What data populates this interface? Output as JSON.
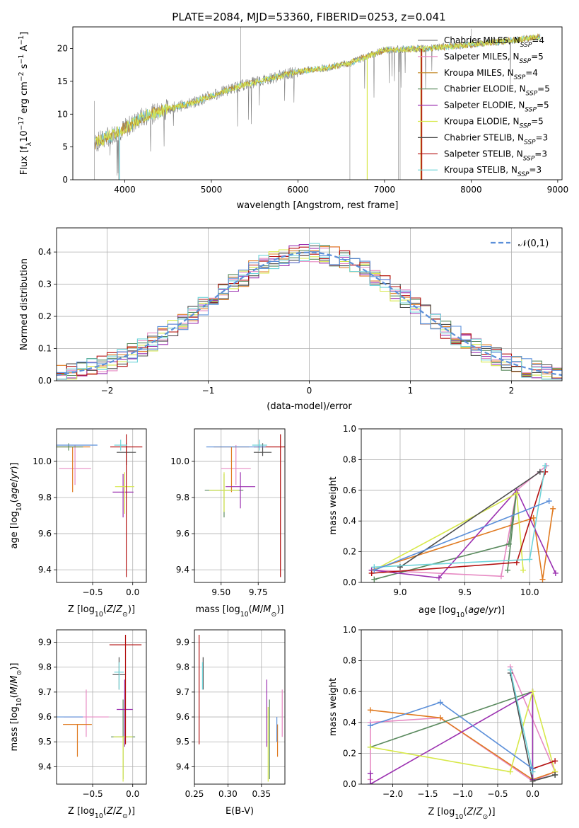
{
  "title": "PLATE=2084, MJD=53360, FIBERID=0253, z=0.041",
  "colors": [
    "#808080",
    "#e78ac3",
    "#c0841e",
    "#5a8a5e",
    "#9b30b0",
    "#d7e84a",
    "#4d4d4d",
    "#b31010",
    "#6fd4d9"
  ],
  "legend_colors": [
    "#808080",
    "#e78ac3",
    "#c0841e",
    "#5a8a5e",
    "#9b30b0",
    "#d7e84a",
    "#4d4d4d",
    "#b31010",
    "#6fd4d9"
  ],
  "model_colors": [
    "#e78ac3",
    "#e07a20",
    "#5a8a5e",
    "#9b30b0",
    "#d7e84a",
    "#4d4d4d",
    "#b31010",
    "#6fd4d9",
    "#5b8fd9"
  ],
  "chart_data": [
    {
      "type": "line",
      "panel": "spectrum",
      "title": "PLATE=2084, MJD=53360, FIBERID=0253, z=0.041",
      "xlabel": "wavelength [Angstrom, rest frame]",
      "ylabel": "Flux [f_λ10^-17 erg cm^-2 s^-1 A^-1]",
      "xlim": [
        3400,
        9050
      ],
      "ylim": [
        0,
        23.3
      ],
      "xticks": [
        4000,
        5000,
        6000,
        7000,
        8000,
        9000
      ],
      "yticks": [
        0,
        5,
        10,
        15,
        20
      ],
      "legend": [
        {
          "label": "Chabrier MILES, N",
          "sub": "SSP",
          "tail": "=4"
        },
        {
          "label": "Salpeter MILES, N",
          "sub": "SSP",
          "tail": "=5"
        },
        {
          "label": "Kroupa MILES, N",
          "sub": "SSP",
          "tail": "=4"
        },
        {
          "label": "Chabrier ELODIE, N",
          "sub": "SSP",
          "tail": "=5"
        },
        {
          "label": "Salpeter ELODIE, N",
          "sub": "SSP",
          "tail": "=5"
        },
        {
          "label": "Kroupa ELODIE, N",
          "sub": "SSP",
          "tail": "=5"
        },
        {
          "label": "Chabrier STELIB, N",
          "sub": "SSP",
          "tail": "=3"
        },
        {
          "label": "Salpeter STELIB, N",
          "sub": "SSP",
          "tail": "=3"
        },
        {
          "label": "Kroupa STELIB, N",
          "sub": "SSP",
          "tail": "=3"
        }
      ],
      "legend_placement": "upper-right",
      "continuum": [
        [
          3650,
          5.5
        ],
        [
          3800,
          6.5
        ],
        [
          4000,
          7.8
        ],
        [
          4200,
          9.5
        ],
        [
          4500,
          10.8
        ],
        [
          4800,
          11.8
        ],
        [
          5000,
          12.8
        ],
        [
          5300,
          14.2
        ],
        [
          5600,
          15.2
        ],
        [
          6000,
          16.5
        ],
        [
          6300,
          17.0
        ],
        [
          6600,
          17.8
        ],
        [
          7000,
          19.8
        ],
        [
          7500,
          20.0
        ],
        [
          8000,
          20.6
        ],
        [
          8500,
          21.3
        ],
        [
          8800,
          21.8
        ]
      ],
      "grid": false
    },
    {
      "type": "histogram",
      "panel": "residuals",
      "xlabel": "(data-model)/error",
      "ylabel": "Normed distribution",
      "xlim": [
        -2.5,
        2.5
      ],
      "ylim": [
        0,
        0.475
      ],
      "xticks": [
        -2,
        -1,
        0,
        1,
        2
      ],
      "yticks": [
        0.0,
        0.1,
        0.2,
        0.3,
        0.4
      ],
      "bin_width": 0.1,
      "legend": [
        "𝒩(0,1)"
      ],
      "legend_placement": "upper-right",
      "grid": true
    },
    {
      "type": "scatter",
      "panel": "age-vs-Z",
      "xlabel": "Z [log10(Z/Z⊙)]",
      "ylabel": "age  [log10(age/yr)]",
      "xlim": [
        -0.95,
        0.17
      ],
      "ylim": [
        9.33,
        10.18
      ],
      "xticks": [
        -0.5,
        0.0
      ],
      "yticks": [
        9.4,
        9.6,
        9.8,
        10.0
      ],
      "grid": true,
      "points": [
        {
          "x": -0.72,
          "y": 9.96,
          "xerr": 0.2,
          "yerr_lo": 0.09,
          "yerr_hi": 0.13
        },
        {
          "x": -0.75,
          "y": 10.08,
          "xerr": 0.22,
          "yerr_lo": 0.25,
          "yerr_hi": 0.0
        },
        {
          "x": -0.8,
          "y": 10.08,
          "xerr": 0.18,
          "yerr_lo": 0.02,
          "yerr_hi": 0.02
        },
        {
          "x": -0.12,
          "y": 9.83,
          "xerr": 0.13,
          "yerr_lo": 0.14,
          "yerr_hi": 0.1
        },
        {
          "x": -0.1,
          "y": 9.86,
          "xerr": 0.12,
          "yerr_lo": 0.15,
          "yerr_hi": 0.08
        },
        {
          "x": -0.08,
          "y": 10.05,
          "xerr": 0.12,
          "yerr_lo": 0.07,
          "yerr_hi": 0.05
        },
        {
          "x": -0.08,
          "y": 10.08,
          "xerr": 0.2,
          "yerr_lo": 0.72,
          "yerr_hi": 0.07
        },
        {
          "x": -0.15,
          "y": 10.09,
          "xerr": 0.08,
          "yerr_lo": 0.03,
          "yerr_hi": 0.03
        },
        {
          "x": -0.72,
          "y": 10.09,
          "xerr": 0.28,
          "yerr_lo": 0.0,
          "yerr_hi": 0.0
        }
      ]
    },
    {
      "type": "scatter",
      "panel": "age-vs-mass",
      "xlabel": "mass [log10(M/M⊙)]",
      "ylabel": "",
      "xlim": [
        9.32,
        9.93
      ],
      "ylim": [
        9.33,
        10.18
      ],
      "xticks": [
        9.5,
        9.75
      ],
      "yticks": [
        9.4,
        9.6,
        9.8,
        10.0
      ],
      "grid": true,
      "points": [
        {
          "x": 9.6,
          "y": 9.96,
          "xerr": 0.1,
          "yerr_lo": 0.09,
          "yerr_hi": 0.13
        },
        {
          "x": 9.57,
          "y": 10.08,
          "xerr": 0.12,
          "yerr_lo": 0.25,
          "yerr_hi": 0.0
        },
        {
          "x": 9.52,
          "y": 9.84,
          "xerr": 0.13,
          "yerr_lo": 0.15,
          "yerr_hi": 0.09
        },
        {
          "x": 9.63,
          "y": 9.86,
          "xerr": 0.1,
          "yerr_lo": 0.12,
          "yerr_hi": 0.08
        },
        {
          "x": 9.52,
          "y": 9.84,
          "xerr": 0.1,
          "yerr_lo": 0.12,
          "yerr_hi": 0.1
        },
        {
          "x": 9.78,
          "y": 10.05,
          "xerr": 0.06,
          "yerr_lo": 0.02,
          "yerr_hi": 0.05
        },
        {
          "x": 9.9,
          "y": 10.08,
          "xerr": 0.18,
          "yerr_lo": 0.72,
          "yerr_hi": 0.07
        },
        {
          "x": 9.76,
          "y": 10.09,
          "xerr": 0.05,
          "yerr_lo": 0.03,
          "yerr_hi": 0.03
        },
        {
          "x": 9.6,
          "y": 10.08,
          "xerr": 0.2,
          "yerr_lo": 0.0,
          "yerr_hi": 0.0
        }
      ]
    },
    {
      "type": "line",
      "panel": "massweight-vs-age",
      "xlabel": "age  [log10(age/yr)]",
      "ylabel": "mass weight",
      "xlim": [
        8.7,
        10.25
      ],
      "ylim": [
        0,
        1.0
      ],
      "xticks": [
        9.0,
        9.5,
        10.0
      ],
      "yticks": [
        0.0,
        0.2,
        0.4,
        0.6,
        0.8,
        1.0
      ],
      "grid": true,
      "series": [
        {
          "points": [
            [
              8.8,
              0.08
            ],
            [
              9.78,
              0.04
            ],
            [
              9.9,
              0.6
            ],
            [
              10.13,
              0.76
            ]
          ]
        },
        {
          "points": [
            [
              8.78,
              0.08
            ],
            [
              10.03,
              0.42
            ],
            [
              10.1,
              0.02
            ],
            [
              10.18,
              0.48
            ]
          ]
        },
        {
          "points": [
            [
              8.8,
              0.02
            ],
            [
              9.84,
              0.25
            ],
            [
              9.9,
              0.6
            ],
            [
              9.83,
              0.08
            ]
          ]
        },
        {
          "points": [
            [
              8.78,
              0.08
            ],
            [
              9.3,
              0.03
            ],
            [
              9.9,
              0.6
            ],
            [
              10.2,
              0.06
            ]
          ]
        },
        {
          "points": [
            [
              8.8,
              0.08
            ],
            [
              9.9,
              0.58
            ],
            [
              9.95,
              0.08
            ]
          ]
        },
        {
          "points": [
            [
              9.0,
              0.1
            ],
            [
              10.08,
              0.72
            ]
          ]
        },
        {
          "points": [
            [
              8.78,
              0.06
            ],
            [
              9.9,
              0.13
            ],
            [
              10.12,
              0.72
            ]
          ]
        },
        {
          "points": [
            [
              8.8,
              0.1
            ],
            [
              10.0,
              0.15
            ],
            [
              10.12,
              0.76
            ]
          ]
        },
        {
          "points": [
            [
              8.8,
              0.08
            ],
            [
              10.15,
              0.53
            ]
          ]
        }
      ]
    },
    {
      "type": "scatter",
      "panel": "mass-vs-Z",
      "xlabel": "Z [log10(Z/Z⊙)]",
      "ylabel": "mass [log10(M/M⊙)]",
      "xlim": [
        -0.95,
        0.17
      ],
      "ylim": [
        9.33,
        9.95
      ],
      "xticks": [
        -0.5,
        0.0
      ],
      "yticks": [
        9.4,
        9.5,
        9.6,
        9.7,
        9.8,
        9.9
      ],
      "grid": true,
      "points": [
        {
          "x": -0.58,
          "y": 9.6,
          "xerr": 0.28,
          "yerr_lo": 0.08,
          "yerr_hi": 0.11
        },
        {
          "x": -0.69,
          "y": 9.57,
          "xerr": 0.18,
          "yerr_lo": 0.13,
          "yerr_hi": 0.0
        },
        {
          "x": -0.12,
          "y": 9.52,
          "xerr": 0.15,
          "yerr_lo": 0.17,
          "yerr_hi": 0.15
        },
        {
          "x": -0.1,
          "y": 9.63,
          "xerr": 0.1,
          "yerr_lo": 0.15,
          "yerr_hi": 0.12
        },
        {
          "x": -0.12,
          "y": 9.52,
          "xerr": 0.12,
          "yerr_lo": 0.18,
          "yerr_hi": 0.0
        },
        {
          "x": -0.17,
          "y": 9.77,
          "xerr": 0.08,
          "yerr_lo": 0.06,
          "yerr_hi": 0.07
        },
        {
          "x": -0.09,
          "y": 9.89,
          "xerr": 0.2,
          "yerr_lo": 0.4,
          "yerr_hi": 0.04
        },
        {
          "x": -0.17,
          "y": 9.78,
          "xerr": 0.06,
          "yerr_lo": 0.07,
          "yerr_hi": 0.04
        },
        {
          "x": -0.8,
          "y": 9.6,
          "xerr": 0.18,
          "yerr_lo": 0.0,
          "yerr_hi": 0.0
        }
      ]
    },
    {
      "type": "scatter",
      "panel": "mass-vs-EBV",
      "xlabel": "E(B-V)",
      "ylabel": "",
      "xlim": [
        0.25,
        0.385
      ],
      "ylim": [
        9.33,
        9.95
      ],
      "xticks": [
        0.25,
        0.3,
        0.35
      ],
      "yticks": [
        9.4,
        9.5,
        9.6,
        9.7,
        9.8,
        9.9
      ],
      "grid": true,
      "points": [
        {
          "x": 0.381,
          "y": 9.6,
          "xerr": 0,
          "yerr_lo": 0.08,
          "yerr_hi": 0.11
        },
        {
          "x": 0.374,
          "y": 9.57,
          "xerr": 0,
          "yerr_lo": 0.13,
          "yerr_hi": 0.0
        },
        {
          "x": 0.362,
          "y": 9.52,
          "xerr": 0,
          "yerr_lo": 0.17,
          "yerr_hi": 0.15
        },
        {
          "x": 0.358,
          "y": 9.63,
          "xerr": 0,
          "yerr_lo": 0.15,
          "yerr_hi": 0.12
        },
        {
          "x": 0.36,
          "y": 9.52,
          "xerr": 0,
          "yerr_lo": 0.18,
          "yerr_hi": 0.12
        },
        {
          "x": 0.263,
          "y": 9.77,
          "xerr": 0,
          "yerr_lo": 0.06,
          "yerr_hi": 0.07
        },
        {
          "x": 0.257,
          "y": 9.89,
          "xerr": 0,
          "yerr_lo": 0.4,
          "yerr_hi": 0.04
        },
        {
          "x": 0.262,
          "y": 9.78,
          "xerr": 0,
          "yerr_lo": 0.07,
          "yerr_hi": 0.04
        },
        {
          "x": 0.373,
          "y": 9.6,
          "xerr": 0,
          "yerr_lo": 0.1,
          "yerr_hi": 0.0
        }
      ]
    },
    {
      "type": "line",
      "panel": "massweight-vs-Z",
      "xlabel": "Z [log10(Z/Z⊙)]",
      "ylabel": "mass weight",
      "xlim": [
        -2.45,
        0.42
      ],
      "ylim": [
        0,
        1.0
      ],
      "xticks": [
        -2.0,
        -1.5,
        -1.0,
        -0.5,
        0.0
      ],
      "yticks": [
        0.0,
        0.2,
        0.4,
        0.6,
        0.8,
        1.0
      ],
      "grid": true,
      "series": [
        {
          "points": [
            [
              -2.32,
              0.03
            ],
            [
              -2.32,
              0.4
            ],
            [
              -1.32,
              0.43
            ],
            [
              0.0,
              0.02
            ],
            [
              0.32,
              0.08
            ],
            [
              -0.32,
              0.76
            ]
          ]
        },
        {
          "points": [
            [
              -2.32,
              0.48
            ],
            [
              -1.32,
              0.43
            ],
            [
              0.0,
              0.03
            ],
            [
              0.32,
              0.08
            ]
          ]
        },
        {
          "points": [
            [
              -2.32,
              0.24
            ],
            [
              0.0,
              0.6
            ],
            [
              0.0,
              0.02
            ],
            [
              0.32,
              0.06
            ]
          ]
        },
        {
          "points": [
            [
              -2.32,
              0.07
            ],
            [
              -2.32,
              0.0
            ],
            [
              0.0,
              0.6
            ],
            [
              0.0,
              0.03
            ]
          ]
        },
        {
          "points": [
            [
              -2.32,
              0.24
            ],
            [
              -0.32,
              0.08
            ],
            [
              0.0,
              0.6
            ],
            [
              0.32,
              0.08
            ]
          ]
        },
        {
          "points": [
            [
              -0.32,
              0.72
            ],
            [
              0.0,
              0.02
            ],
            [
              0.32,
              0.06
            ]
          ]
        },
        {
          "points": [
            [
              0.0,
              0.1
            ],
            [
              0.32,
              0.15
            ]
          ]
        },
        {
          "points": [
            [
              -0.32,
              0.74
            ],
            [
              0.0,
              0.08
            ]
          ]
        },
        {
          "points": [
            [
              -2.32,
              0.38
            ],
            [
              -1.32,
              0.53
            ],
            [
              0.0,
              0.1
            ]
          ]
        }
      ]
    }
  ]
}
